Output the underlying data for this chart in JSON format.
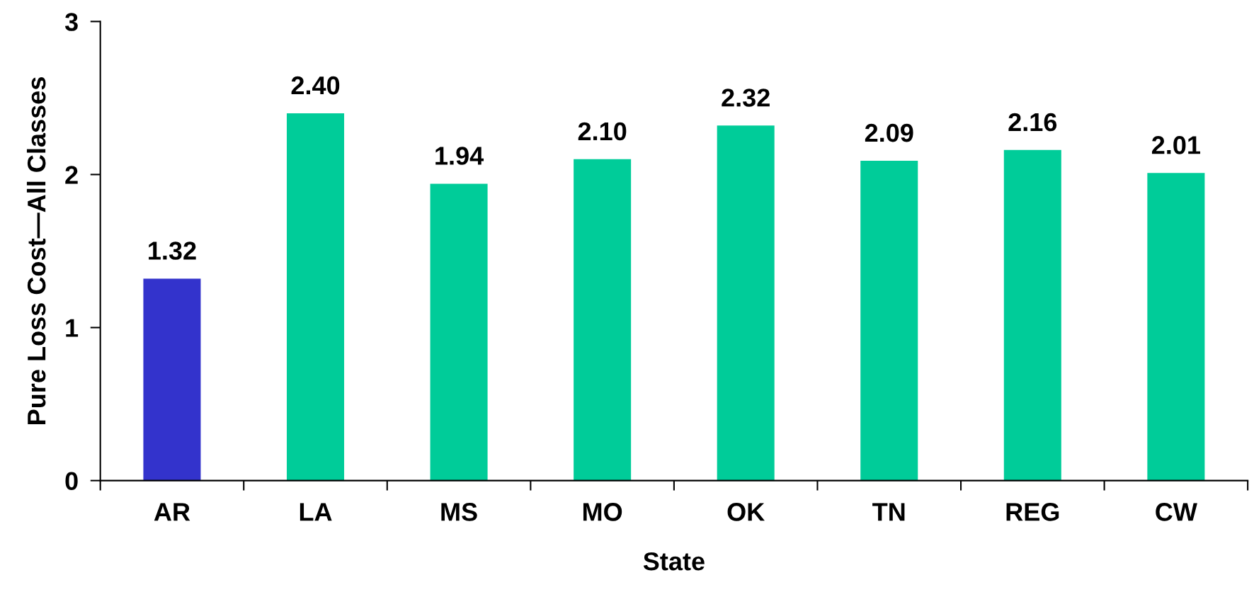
{
  "chart_data": {
    "type": "bar",
    "xlabel": "State",
    "ylabel": "Pure Loss Cost—All Classes",
    "categories": [
      "AR",
      "LA",
      "MS",
      "MO",
      "OK",
      "TN",
      "REG",
      "CW"
    ],
    "values": [
      1.32,
      2.4,
      1.94,
      2.1,
      2.32,
      2.09,
      2.16,
      2.01
    ],
    "value_labels": [
      "1.32",
      "2.40",
      "1.94",
      "2.10",
      "2.32",
      "2.09",
      "2.16",
      "2.01"
    ],
    "colors": [
      "#3333cc",
      "#00cc99",
      "#00cc99",
      "#00cc99",
      "#00cc99",
      "#00cc99",
      "#00cc99",
      "#00cc99"
    ],
    "ylim": [
      0,
      3
    ],
    "yticks": [
      0,
      1,
      2,
      3
    ],
    "grid": false
  }
}
